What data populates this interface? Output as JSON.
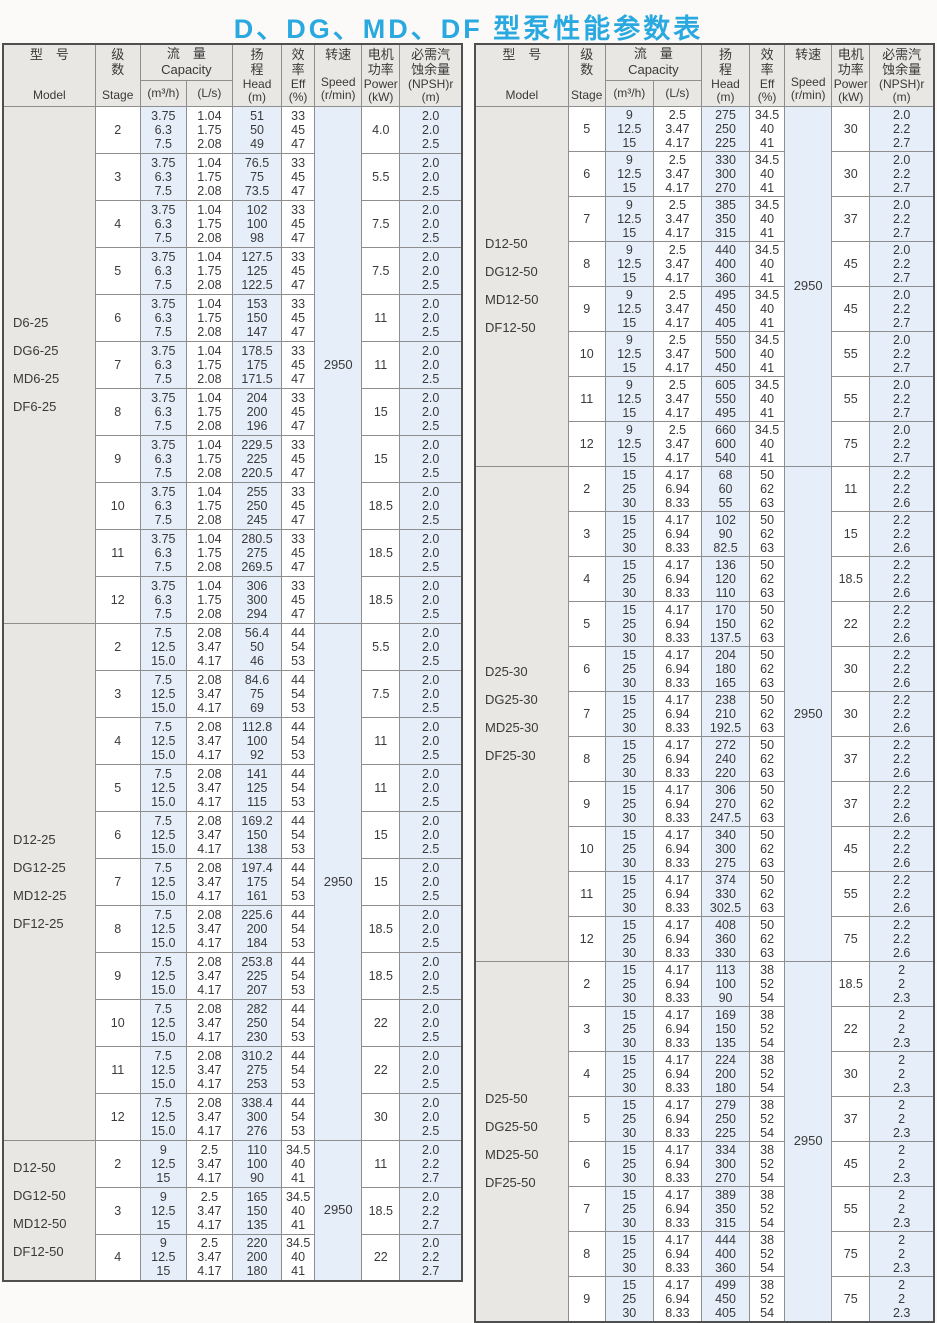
{
  "title": "D、DG、MD、DF 型泵性能参数表",
  "colors": {
    "accent": "#29a9e0",
    "blue-col": "#e6eff9",
    "gray-bg": "#e9e7e3",
    "border": "#8e8e8e",
    "text": "#3a3a3a"
  },
  "columns": [
    {
      "id": "model",
      "zh": "型　号",
      "en": "Model"
    },
    {
      "id": "stage",
      "zh": "级\n数",
      "en": "Stage"
    },
    {
      "id": "capacity",
      "zh": "流　量",
      "en": "Capacity",
      "units": [
        "(m³/h)",
        "(L/s)"
      ]
    },
    {
      "id": "head",
      "zh": "扬\n程",
      "en": "Head\n(m)"
    },
    {
      "id": "eff",
      "zh": "效\n率",
      "en": "Eff\n(%)"
    },
    {
      "id": "speed",
      "zh": "转速",
      "en": "Speed\n(r/min)"
    },
    {
      "id": "power",
      "zh": "电机\n功率",
      "en": "Power\n(kW)"
    },
    {
      "id": "npsh",
      "zh": "必需汽\n蚀余量",
      "en": "(NPSH)r\n(m)"
    }
  ],
  "tables": [
    {
      "groups": [
        {
          "models": [
            "D6-25",
            "DG6-25",
            "MD6-25",
            "DF6-25"
          ],
          "speed": "2950",
          "capacity_m3h": [
            "3.75",
            "6.3",
            "7.5"
          ],
          "capacity_ls": [
            "1.04",
            "1.75",
            "2.08"
          ],
          "eff": [
            "33",
            "45",
            "47"
          ],
          "npsh": [
            "2.0",
            "2.0",
            "2.5"
          ],
          "rows": [
            {
              "stage": "2",
              "head": [
                "51",
                "50",
                "49"
              ],
              "power": "4.0"
            },
            {
              "stage": "3",
              "head": [
                "76.5",
                "75",
                "73.5"
              ],
              "power": "5.5"
            },
            {
              "stage": "4",
              "head": [
                "102",
                "100",
                "98"
              ],
              "power": "7.5"
            },
            {
              "stage": "5",
              "head": [
                "127.5",
                "125",
                "122.5"
              ],
              "power": "7.5"
            },
            {
              "stage": "6",
              "head": [
                "153",
                "150",
                "147"
              ],
              "power": "11"
            },
            {
              "stage": "7",
              "head": [
                "178.5",
                "175",
                "171.5"
              ],
              "power": "11"
            },
            {
              "stage": "8",
              "head": [
                "204",
                "200",
                "196"
              ],
              "power": "15"
            },
            {
              "stage": "9",
              "head": [
                "229.5",
                "225",
                "220.5"
              ],
              "power": "15"
            },
            {
              "stage": "10",
              "head": [
                "255",
                "250",
                "245"
              ],
              "power": "18.5"
            },
            {
              "stage": "11",
              "head": [
                "280.5",
                "275",
                "269.5"
              ],
              "power": "18.5"
            },
            {
              "stage": "12",
              "head": [
                "306",
                "300",
                "294"
              ],
              "power": "18.5"
            }
          ]
        },
        {
          "models": [
            "D12-25",
            "DG12-25",
            "MD12-25",
            "DF12-25"
          ],
          "speed": "2950",
          "capacity_m3h": [
            "7.5",
            "12.5",
            "15.0"
          ],
          "capacity_ls": [
            "2.08",
            "3.47",
            "4.17"
          ],
          "eff": [
            "44",
            "54",
            "53"
          ],
          "npsh": [
            "2.0",
            "2.0",
            "2.5"
          ],
          "rows": [
            {
              "stage": "2",
              "head": [
                "56.4",
                "50",
                "46"
              ],
              "power": "5.5"
            },
            {
              "stage": "3",
              "head": [
                "84.6",
                "75",
                "69"
              ],
              "power": "7.5"
            },
            {
              "stage": "4",
              "head": [
                "112.8",
                "100",
                "92"
              ],
              "power": "11"
            },
            {
              "stage": "5",
              "head": [
                "141",
                "125",
                "115"
              ],
              "power": "11"
            },
            {
              "stage": "6",
              "head": [
                "169.2",
                "150",
                "138"
              ],
              "power": "15"
            },
            {
              "stage": "7",
              "head": [
                "197.4",
                "175",
                "161"
              ],
              "power": "15"
            },
            {
              "stage": "8",
              "head": [
                "225.6",
                "200",
                "184"
              ],
              "power": "18.5"
            },
            {
              "stage": "9",
              "head": [
                "253.8",
                "225",
                "207"
              ],
              "power": "18.5"
            },
            {
              "stage": "10",
              "head": [
                "282",
                "250",
                "230"
              ],
              "power": "22"
            },
            {
              "stage": "11",
              "head": [
                "310.2",
                "275",
                "253"
              ],
              "power": "22"
            },
            {
              "stage": "12",
              "head": [
                "338.4",
                "300",
                "276"
              ],
              "power": "30"
            }
          ]
        },
        {
          "models": [
            "D12-50",
            "DG12-50",
            "MD12-50",
            "DF12-50"
          ],
          "speed": "2950",
          "capacity_m3h": [
            "9",
            "12.5",
            "15"
          ],
          "capacity_ls": [
            "2.5",
            "3.47",
            "4.17"
          ],
          "eff": [
            "34.5",
            "40",
            "41"
          ],
          "npsh": [
            "2.0",
            "2.2",
            "2.7"
          ],
          "rows": [
            {
              "stage": "2",
              "head": [
                "110",
                "100",
                "90"
              ],
              "power": "11"
            },
            {
              "stage": "3",
              "head": [
                "165",
                "150",
                "135"
              ],
              "power": "18.5"
            },
            {
              "stage": "4",
              "head": [
                "220",
                "200",
                "180"
              ],
              "power": "22"
            }
          ]
        }
      ]
    },
    {
      "groups": [
        {
          "models": [
            "D12-50",
            "DG12-50",
            "MD12-50",
            "DF12-50"
          ],
          "speed": "2950",
          "capacity_m3h": [
            "9",
            "12.5",
            "15"
          ],
          "capacity_ls": [
            "2.5",
            "3.47",
            "4.17"
          ],
          "eff": [
            "34.5",
            "40",
            "41"
          ],
          "npsh": [
            "2.0",
            "2.2",
            "2.7"
          ],
          "rows": [
            {
              "stage": "5",
              "head": [
                "275",
                "250",
                "225"
              ],
              "power": "30"
            },
            {
              "stage": "6",
              "head": [
                "330",
                "300",
                "270"
              ],
              "power": "30"
            },
            {
              "stage": "7",
              "head": [
                "385",
                "350",
                "315"
              ],
              "power": "37"
            },
            {
              "stage": "8",
              "head": [
                "440",
                "400",
                "360"
              ],
              "power": "45"
            },
            {
              "stage": "9",
              "head": [
                "495",
                "450",
                "405"
              ],
              "power": "45"
            },
            {
              "stage": "10",
              "head": [
                "550",
                "500",
                "450"
              ],
              "power": "55"
            },
            {
              "stage": "11",
              "head": [
                "605",
                "550",
                "495"
              ],
              "power": "55"
            },
            {
              "stage": "12",
              "head": [
                "660",
                "600",
                "540"
              ],
              "power": "75"
            }
          ]
        },
        {
          "models": [
            "D25-30",
            "DG25-30",
            "MD25-30",
            "DF25-30"
          ],
          "speed": "2950",
          "capacity_m3h": [
            "15",
            "25",
            "30"
          ],
          "capacity_ls": [
            "4.17",
            "6.94",
            "8.33"
          ],
          "eff": [
            "50",
            "62",
            "63"
          ],
          "npsh": [
            "2.2",
            "2.2",
            "2.6"
          ],
          "rows": [
            {
              "stage": "2",
              "head": [
                "68",
                "60",
                "55"
              ],
              "power": "11"
            },
            {
              "stage": "3",
              "head": [
                "102",
                "90",
                "82.5"
              ],
              "power": "15"
            },
            {
              "stage": "4",
              "head": [
                "136",
                "120",
                "110"
              ],
              "power": "18.5"
            },
            {
              "stage": "5",
              "head": [
                "170",
                "150",
                "137.5"
              ],
              "power": "22"
            },
            {
              "stage": "6",
              "head": [
                "204",
                "180",
                "165"
              ],
              "power": "30"
            },
            {
              "stage": "7",
              "head": [
                "238",
                "210",
                "192.5"
              ],
              "power": "30"
            },
            {
              "stage": "8",
              "head": [
                "272",
                "240",
                "220"
              ],
              "power": "37"
            },
            {
              "stage": "9",
              "head": [
                "306",
                "270",
                "247.5"
              ],
              "power": "37"
            },
            {
              "stage": "10",
              "head": [
                "340",
                "300",
                "275"
              ],
              "power": "45"
            },
            {
              "stage": "11",
              "head": [
                "374",
                "330",
                "302.5"
              ],
              "power": "55"
            },
            {
              "stage": "12",
              "head": [
                "408",
                "360",
                "330"
              ],
              "power": "75"
            }
          ]
        },
        {
          "models": [
            "D25-50",
            "DG25-50",
            "MD25-50",
            "DF25-50"
          ],
          "speed": "2950",
          "capacity_m3h": [
            "15",
            "25",
            "30"
          ],
          "capacity_ls": [
            "4.17",
            "6.94",
            "8.33"
          ],
          "eff": [
            "38",
            "52",
            "54"
          ],
          "npsh": [
            "2",
            "2",
            "2.3"
          ],
          "rows": [
            {
              "stage": "2",
              "head": [
                "113",
                "100",
                "90"
              ],
              "power": "18.5"
            },
            {
              "stage": "3",
              "head": [
                "169",
                "150",
                "135"
              ],
              "power": "22"
            },
            {
              "stage": "4",
              "head": [
                "224",
                "200",
                "180"
              ],
              "power": "30"
            },
            {
              "stage": "5",
              "head": [
                "279",
                "250",
                "225"
              ],
              "power": "37"
            },
            {
              "stage": "6",
              "head": [
                "334",
                "300",
                "270"
              ],
              "power": "45"
            },
            {
              "stage": "7",
              "head": [
                "389",
                "350",
                "315"
              ],
              "power": "55"
            },
            {
              "stage": "8",
              "head": [
                "444",
                "400",
                "360"
              ],
              "power": "75"
            },
            {
              "stage": "9",
              "head": [
                "499",
                "450",
                "405"
              ],
              "power": "75"
            }
          ]
        }
      ]
    }
  ]
}
